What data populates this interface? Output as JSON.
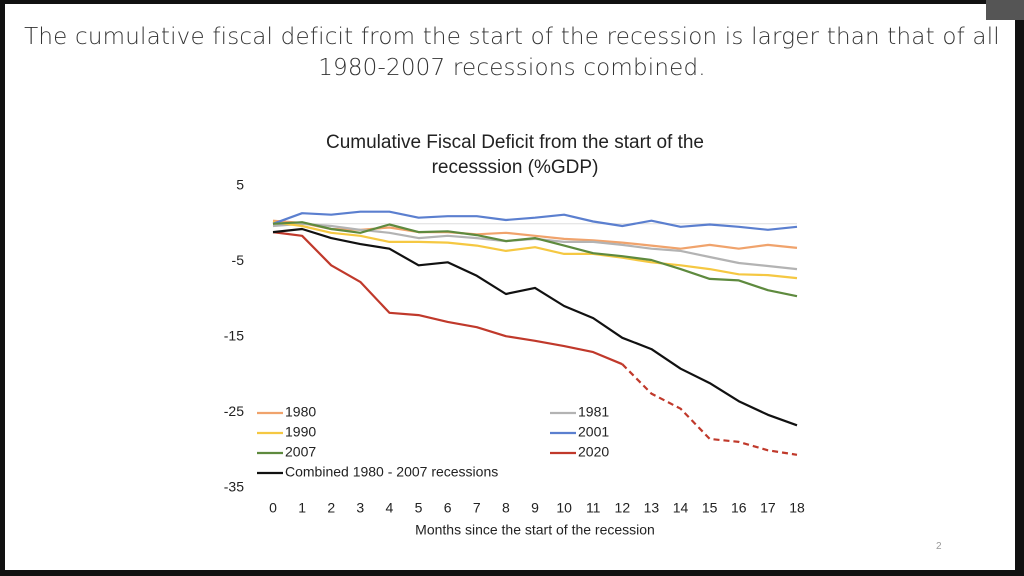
{
  "slide_title": "The cumulative fiscal deficit from the start of the recession is larger than that of all 1980-2007 recessions combined.",
  "page_number": "2",
  "chart_data": {
    "type": "line",
    "title": "Cumulative Fiscal Deficit from the start of the recesssion (%GDP)",
    "x_label": "Months since the start of the recession",
    "x": [
      0,
      1,
      2,
      3,
      4,
      5,
      6,
      7,
      8,
      9,
      10,
      11,
      12,
      13,
      14,
      15,
      16,
      17,
      18
    ],
    "xlim": [
      0,
      18
    ],
    "ylim": [
      -35,
      5
    ],
    "yticks": [
      5,
      -5,
      -15,
      -25,
      -35
    ],
    "grid": false,
    "legend": "lower left",
    "series": [
      {
        "name": "1980",
        "color": "#f0a36c",
        "values": [
          0.4,
          0.1,
          -0.7,
          -0.8,
          -0.5,
          -1.1,
          -1.1,
          -1.4,
          -1.2,
          -1.6,
          -2,
          -2.2,
          -2.5,
          -2.9,
          -3.3,
          -2.8,
          -3.3,
          -2.8,
          -3.2
        ]
      },
      {
        "name": "1981",
        "color": "#b3b3b3",
        "values": [
          -0.3,
          0,
          -0.3,
          -0.8,
          -1.2,
          -1.9,
          -1.6,
          -1.9,
          -2.3,
          -2,
          -2.4,
          -2.4,
          -2.8,
          -3.3,
          -3.6,
          -4.4,
          -5.2,
          -5.6,
          -6
        ]
      },
      {
        "name": "1990",
        "color": "#f5c842",
        "values": [
          0.2,
          -0.3,
          -1.2,
          -1.6,
          -2.4,
          -2.4,
          -2.5,
          -2.9,
          -3.6,
          -3.1,
          -4,
          -4,
          -4.5,
          -5.1,
          -5.5,
          -6,
          -6.7,
          -6.8,
          -7.2
        ]
      },
      {
        "name": "2001",
        "color": "#5b7fcf",
        "values": [
          0,
          1.4,
          1.2,
          1.6,
          1.6,
          0.8,
          1,
          1,
          0.5,
          0.8,
          1.2,
          0.3,
          -0.3,
          0.4,
          -0.4,
          -0.1,
          -0.4,
          -0.8,
          -0.4
        ]
      },
      {
        "name": "2007",
        "color": "#5e8a3e",
        "values": [
          0,
          0.2,
          -0.7,
          -1.2,
          -0.1,
          -1.1,
          -1,
          -1.5,
          -2.3,
          -1.9,
          -2.9,
          -3.9,
          -4.3,
          -4.8,
          -6,
          -7.3,
          -7.5,
          -8.8,
          -9.6
        ]
      },
      {
        "name": "2020",
        "color": "#c0392b",
        "dashed_from": 12,
        "values": [
          -1.1,
          -1.6,
          -5.5,
          -7.7,
          -11.8,
          -12.1,
          -13,
          -13.7,
          -14.9,
          -15.5,
          -16.2,
          -17,
          -18.6,
          -22.5,
          -24.5,
          -28.5,
          -28.9,
          -30,
          -30.6
        ]
      },
      {
        "name": "Combined 1980 - 2007 recessions",
        "color": "#111111",
        "values": [
          -1.1,
          -0.7,
          -1.9,
          -2.7,
          -3.3,
          -5.5,
          -5.1,
          -6.9,
          -9.3,
          -8.5,
          -10.9,
          -12.5,
          -15.1,
          -16.6,
          -19.2,
          -21.1,
          -23.5,
          -25.3,
          -26.7
        ]
      }
    ]
  }
}
